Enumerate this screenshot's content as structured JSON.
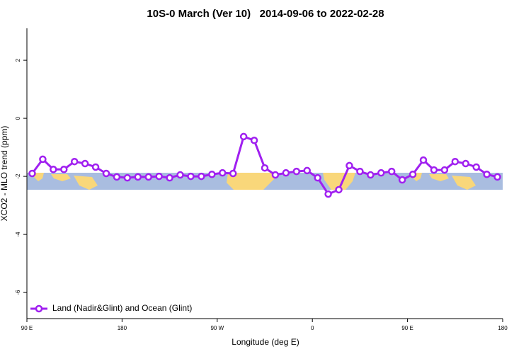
{
  "chart_data": {
    "type": "line",
    "title": "10S-0 March (Ver 10)   2014-09-06 to 2022-02-28",
    "xlabel": "Longitude (deg E)",
    "ylabel": "XCO2 - MLO trend (ppm)",
    "xlim": [
      90,
      540
    ],
    "ylim": [
      -6.9,
      3.1
    ],
    "xticks": [
      {
        "value": 90,
        "label": "90 E"
      },
      {
        "value": 180,
        "label": "180"
      },
      {
        "value": 270,
        "label": "90 W"
      },
      {
        "value": 360,
        "label": "0"
      },
      {
        "value": 450,
        "label": "90 E"
      },
      {
        "value": 540,
        "label": "180"
      }
    ],
    "yticks": [
      2,
      0,
      -2,
      -4,
      -6
    ],
    "legend": "bottom-left",
    "x": [
      95,
      105,
      115,
      125,
      135,
      145,
      155,
      165,
      175,
      185,
      195,
      205,
      215,
      225,
      235,
      245,
      255,
      265,
      275,
      285,
      295,
      305,
      315,
      325,
      335,
      345,
      355,
      365,
      375,
      385,
      395,
      405,
      415,
      425,
      435,
      445,
      455,
      465,
      475,
      485,
      495,
      505,
      515,
      525,
      535
    ],
    "series": [
      {
        "name": "Land (Nadir&Glint) and Ocean (Glint)",
        "color": "#a020f0",
        "values": [
          -1.9,
          -1.41,
          -1.76,
          -1.76,
          -1.49,
          -1.56,
          -1.68,
          -1.9,
          -2.02,
          -2.05,
          -2.02,
          -2.02,
          -2.0,
          -2.05,
          -1.95,
          -2.0,
          -2.0,
          -1.93,
          -1.88,
          -1.9,
          -0.63,
          -0.76,
          -1.71,
          -1.95,
          -1.88,
          -1.83,
          -1.8,
          -2.05,
          -2.61,
          -2.46,
          -1.63,
          -1.83,
          -1.95,
          -1.88,
          -1.83,
          -2.12,
          -1.93,
          -1.44,
          -1.78,
          -1.78,
          -1.49,
          -1.56,
          -1.68,
          -1.93,
          -2.02
        ]
      }
    ]
  }
}
